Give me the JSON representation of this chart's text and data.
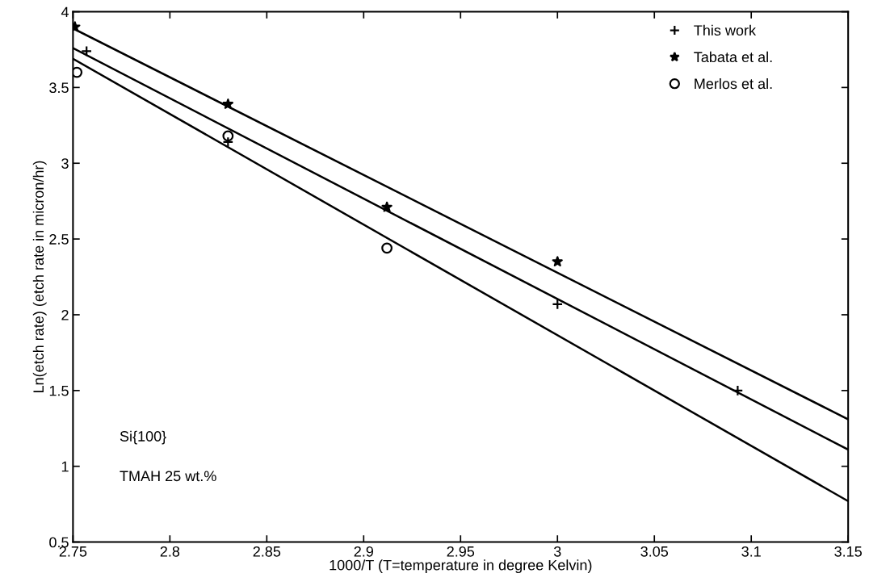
{
  "chart_data": {
    "type": "scatter",
    "xlabel": "1000/T (T=temperature in degree Kelvin)",
    "ylabel": "Ln(etch rate) (etch rate in micron/hr)",
    "series": [
      {
        "name": "This work",
        "marker": "cross",
        "color": "#000000",
        "x": [
          2.757,
          2.83,
          3.0,
          3.093
        ],
        "values": [
          3.74,
          3.14,
          2.07,
          1.5
        ]
      },
      {
        "name": "Tabata et al.",
        "marker": "star",
        "color": "#000000",
        "x": [
          2.751,
          2.83,
          2.912,
          3.0
        ],
        "values": [
          3.9,
          3.39,
          2.71,
          2.35
        ]
      },
      {
        "name": "Merlos et al.",
        "marker": "circle",
        "color": "#000000",
        "x": [
          2.752,
          2.83,
          2.912
        ],
        "values": [
          3.6,
          3.18,
          2.44
        ]
      },
      {
        "type": "line",
        "color": "#000000",
        "x": [
          2.75,
          3.15
        ],
        "values": [
          3.89,
          1.31
        ]
      },
      {
        "type": "line",
        "color": "#000000",
        "x": [
          2.75,
          3.15
        ],
        "values": [
          3.76,
          1.11
        ]
      },
      {
        "type": "line",
        "color": "#000000",
        "x": [
          2.75,
          3.15
        ],
        "values": [
          3.69,
          0.77
        ]
      }
    ],
    "xlim": [
      2.75,
      3.15
    ],
    "xticks": [
      2.75,
      2.8,
      2.85,
      2.9,
      2.95,
      3,
      3.05,
      3.1,
      3.15
    ],
    "ylim": [
      0.5,
      4
    ],
    "yticks": [
      0.5,
      1,
      1.5,
      2,
      2.5,
      3,
      3.5,
      4
    ],
    "grid": false,
    "legend": "top right",
    "annotations": [
      "Si{100}",
      "TMAH 25 wt.%"
    ]
  }
}
